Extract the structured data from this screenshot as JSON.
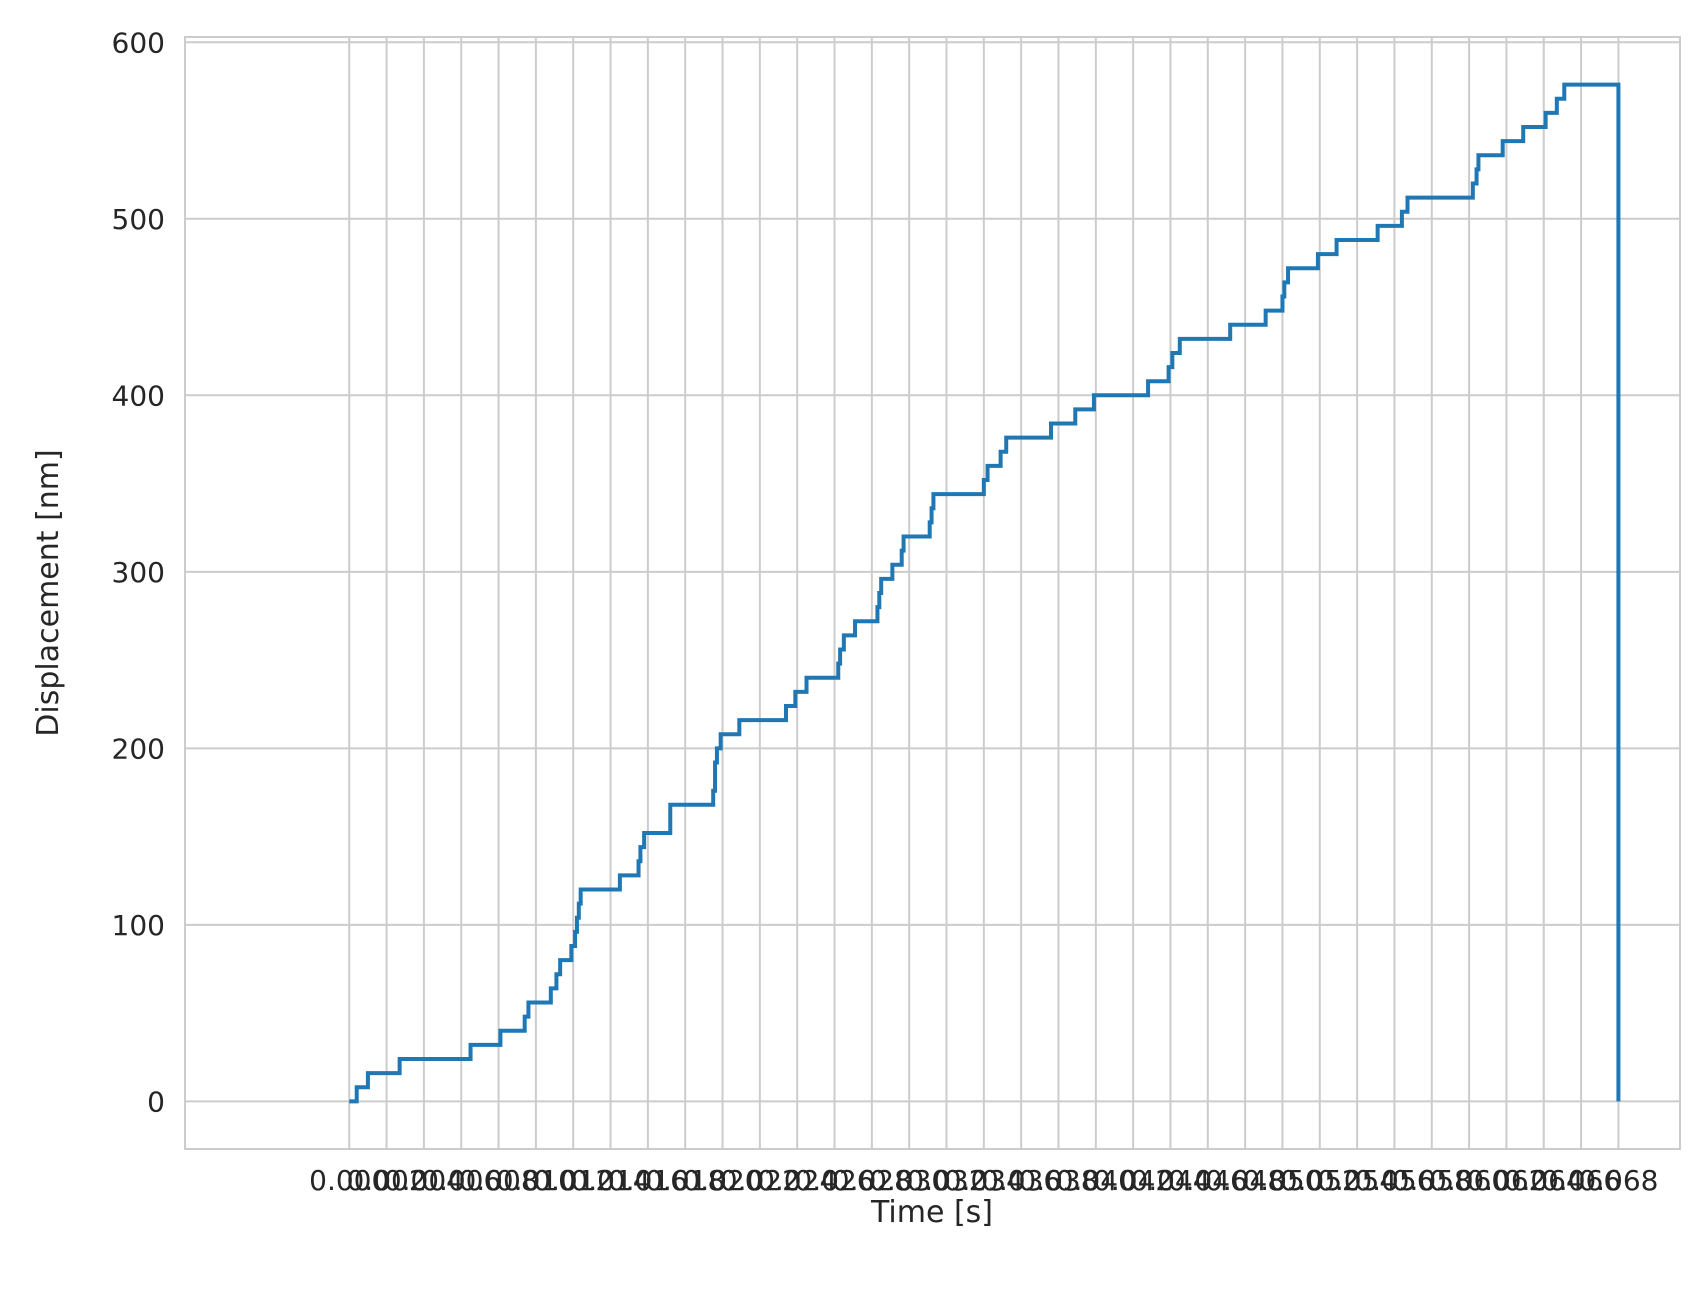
{
  "chart_data": {
    "type": "line",
    "title": "",
    "xlabel": "Time [s]",
    "ylabel": "Displacement [nm]",
    "xlim": [
      -0.0088,
      0.0713
    ],
    "ylim": [
      -27,
      603
    ],
    "x_ticks": [
      0.0,
      0.002,
      0.004,
      0.006,
      0.008,
      0.01,
      0.012,
      0.014,
      0.016,
      0.018,
      0.02,
      0.022,
      0.024,
      0.026,
      0.028,
      0.03,
      0.032,
      0.034,
      0.036,
      0.038,
      0.04,
      0.042,
      0.044,
      0.046,
      0.048,
      0.05,
      0.052,
      0.054,
      0.056,
      0.058,
      0.06,
      0.062,
      0.064,
      0.066,
      0.068
    ],
    "x_tick_labels": [
      "0.000",
      "0.002",
      "0.004",
      "0.006",
      "0.008",
      "0.010",
      "0.012",
      "0.014",
      "0.016",
      "0.018",
      "0.020",
      "0.022",
      "0.024",
      "0.026",
      "0.028",
      "0.030",
      "0.032",
      "0.034",
      "0.036",
      "0.038",
      "0.040",
      "0.042",
      "0.044",
      "0.046",
      "0.048",
      "0.050",
      "0.052",
      "0.054",
      "0.056",
      "0.058",
      "0.060",
      "0.062",
      "0.064",
      "0.066",
      "0.068"
    ],
    "y_ticks": [
      0,
      100,
      200,
      300,
      400,
      500,
      600
    ],
    "y_tick_labels": [
      "0",
      "100",
      "200",
      "300",
      "400",
      "500",
      "600"
    ],
    "grid": true,
    "legend": "none",
    "series": [
      {
        "color": "#1f77b4",
        "x": [
          0.0,
          0.0004,
          0.001,
          0.0027,
          0.0065,
          0.0081,
          0.0094,
          0.0096,
          0.0108,
          0.0111,
          0.0113,
          0.0119,
          0.0121,
          0.0122,
          0.0123,
          0.0124,
          0.0145,
          0.0155,
          0.0156,
          0.0158,
          0.0172,
          0.0195,
          0.0196,
          0.0197,
          0.0199,
          0.0209,
          0.0234,
          0.0239,
          0.0245,
          0.0262,
          0.0263,
          0.0265,
          0.0271,
          0.0283,
          0.0284,
          0.0285,
          0.0291,
          0.0296,
          0.0297,
          0.0311,
          0.0312,
          0.0313,
          0.034,
          0.0342,
          0.0349,
          0.0352,
          0.0376,
          0.0389,
          0.0399,
          0.0428,
          0.0439,
          0.0441,
          0.0445,
          0.0472,
          0.0491,
          0.05,
          0.0501,
          0.0503,
          0.0519,
          0.0529,
          0.0551,
          0.0564,
          0.0567,
          0.0602,
          0.0604,
          0.0605,
          0.0618,
          0.0629,
          0.0641,
          0.0647,
          0.0651,
          0.0665,
          0.068
        ],
        "y": [
          0,
          8,
          16,
          24,
          32,
          40,
          48,
          56,
          64,
          72,
          80,
          88,
          96,
          104,
          112,
          120,
          128,
          136,
          144,
          152,
          168,
          176,
          192,
          200,
          208,
          216,
          224,
          232,
          240,
          248,
          256,
          264,
          272,
          280,
          288,
          296,
          304,
          312,
          320,
          328,
          336,
          344,
          352,
          360,
          368,
          376,
          384,
          392,
          400,
          408,
          416,
          424,
          432,
          440,
          448,
          456,
          464,
          472,
          480,
          488,
          496,
          504,
          512,
          520,
          528,
          536,
          544,
          552,
          560,
          568,
          576,
          576,
          0
        ]
      }
    ]
  }
}
